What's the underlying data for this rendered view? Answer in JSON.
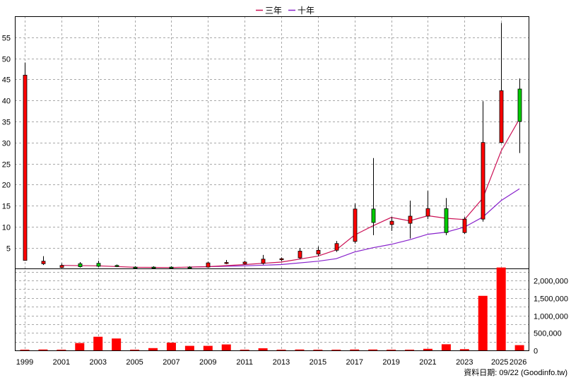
{
  "chart_data": {
    "type": "candlestick",
    "legend": {
      "position": "top-center",
      "entries": [
        {
          "name": "三年",
          "color": "#cc1155"
        },
        {
          "name": "十年",
          "color": "#8822cc"
        }
      ]
    },
    "x_tick_labels": [
      "1999",
      "2001",
      "2003",
      "2005",
      "2007",
      "2009",
      "2011",
      "2013",
      "2015",
      "2017",
      "2019",
      "2021",
      "2023",
      "2025",
      "2026"
    ],
    "price_panel": {
      "yticks": [
        5,
        10,
        15,
        20,
        25,
        30,
        35,
        40,
        45,
        50,
        55
      ],
      "grid": true,
      "candles": [
        {
          "year": 1999,
          "open": 2,
          "close": 46,
          "high": 49,
          "low": 2
        },
        {
          "year": 2000,
          "open": 1.2,
          "close": 1.8,
          "high": 3,
          "low": 0.9
        },
        {
          "year": 2001,
          "open": 0.3,
          "close": 0.8,
          "high": 1.3,
          "low": 0.2
        },
        {
          "year": 2002,
          "open": 1.2,
          "close": 0.5,
          "high": 1.6,
          "low": 0.3
        },
        {
          "year": 2003,
          "open": 1.3,
          "close": 0.6,
          "high": 1.9,
          "low": 0.4
        },
        {
          "year": 2004,
          "open": 0.8,
          "close": 0.6,
          "high": 1.0,
          "low": 0.4
        },
        {
          "year": 2005,
          "open": 0.4,
          "close": 0.3,
          "high": 0.6,
          "low": 0.1
        },
        {
          "year": 2006,
          "open": 0.4,
          "close": 0.3,
          "high": 0.6,
          "low": 0.1
        },
        {
          "year": 2007,
          "open": 0.4,
          "close": 0.3,
          "high": 0.6,
          "low": 0.2
        },
        {
          "year": 2008,
          "open": 0.4,
          "close": 0.3,
          "high": 0.6,
          "low": 0.2
        },
        {
          "year": 2009,
          "open": 0.4,
          "close": 1.4,
          "high": 1.7,
          "low": 0.3
        },
        {
          "year": 2010,
          "open": 1.3,
          "close": 1.5,
          "high": 2.1,
          "low": 1.1
        },
        {
          "year": 2011,
          "open": 1.2,
          "close": 1.6,
          "high": 1.9,
          "low": 1.0
        },
        {
          "year": 2012,
          "open": 1.3,
          "close": 2.3,
          "high": 3.3,
          "low": 1.0
        },
        {
          "year": 2013,
          "open": 2.2,
          "close": 2.4,
          "high": 2.7,
          "low": 1.8
        },
        {
          "year": 2014,
          "open": 2.6,
          "close": 4.2,
          "high": 4.9,
          "low": 2.3
        },
        {
          "year": 2015,
          "open": 3.5,
          "close": 4.4,
          "high": 5.3,
          "low": 3.0
        },
        {
          "year": 2016,
          "open": 4.4,
          "close": 6.0,
          "high": 6.6,
          "low": 4.0
        },
        {
          "year": 2017,
          "open": 6.5,
          "close": 14.2,
          "high": 15.5,
          "low": 6.0
        },
        {
          "year": 2018,
          "open": 14.2,
          "close": 11.0,
          "high": 26.3,
          "low": 8.0
        },
        {
          "year": 2019,
          "open": 10.5,
          "close": 11.3,
          "high": 12.3,
          "low": 9.0
        },
        {
          "year": 2020,
          "open": 10.8,
          "close": 12.5,
          "high": 16.2,
          "low": 7.2
        },
        {
          "year": 2021,
          "open": 12.5,
          "close": 14.3,
          "high": 18.5,
          "low": 11.8
        },
        {
          "year": 2022,
          "open": 14.3,
          "close": 8.6,
          "high": 16.8,
          "low": 8.0
        },
        {
          "year": 2023,
          "open": 8.6,
          "close": 11.8,
          "high": 12.3,
          "low": 8.3
        },
        {
          "year": 2024,
          "open": 11.8,
          "close": 30.0,
          "high": 39.8,
          "low": 11.2
        },
        {
          "year": 2025,
          "open": 30.0,
          "close": 42.3,
          "high": 58.4,
          "low": 29.8
        },
        {
          "year": 2026,
          "open": 42.7,
          "close": 35.0,
          "high": 45.2,
          "low": 27.5
        }
      ],
      "ma_three_year": [
        [
          2001,
          0.8
        ],
        [
          2003,
          0.7
        ],
        [
          2005,
          0.35
        ],
        [
          2007,
          0.3
        ],
        [
          2009,
          0.5
        ],
        [
          2011,
          1.0
        ],
        [
          2013,
          1.6
        ],
        [
          2015,
          3.0
        ],
        [
          2016,
          4.5
        ],
        [
          2017,
          8.0
        ],
        [
          2018,
          10.2
        ],
        [
          2019,
          12.2
        ],
        [
          2020,
          11.4
        ],
        [
          2021,
          12.6
        ],
        [
          2022,
          12.0
        ],
        [
          2023,
          11.7
        ],
        [
          2024,
          16.8
        ],
        [
          2025,
          28.0
        ],
        [
          2026,
          35.6
        ]
      ],
      "ma_ten_year": [
        [
          2008,
          0.4
        ],
        [
          2009,
          0.5
        ],
        [
          2011,
          0.7
        ],
        [
          2013,
          1.0
        ],
        [
          2015,
          1.8
        ],
        [
          2016,
          2.4
        ],
        [
          2017,
          4.0
        ],
        [
          2018,
          5.0
        ],
        [
          2019,
          5.8
        ],
        [
          2020,
          6.9
        ],
        [
          2021,
          8.2
        ],
        [
          2022,
          8.7
        ],
        [
          2023,
          9.9
        ],
        [
          2024,
          12.3
        ],
        [
          2025,
          16.2
        ],
        [
          2026,
          19.0
        ]
      ]
    },
    "volume_panel": {
      "yticks": [
        0,
        500000,
        1000000,
        1500000,
        2000000
      ],
      "ytick_labels": [
        "0",
        "500,000",
        "1,000,000",
        "1,500,000",
        "2,000,000"
      ],
      "grid": true,
      "color": "#ff0000",
      "bars": [
        {
          "year": 1999,
          "value": 5000
        },
        {
          "year": 2000,
          "value": 25000
        },
        {
          "year": 2001,
          "value": 5000
        },
        {
          "year": 2002,
          "value": 210000
        },
        {
          "year": 2003,
          "value": 390000
        },
        {
          "year": 2004,
          "value": 340000
        },
        {
          "year": 2005,
          "value": 20000
        },
        {
          "year": 2006,
          "value": 65000
        },
        {
          "year": 2007,
          "value": 220000
        },
        {
          "year": 2008,
          "value": 130000
        },
        {
          "year": 2009,
          "value": 130000
        },
        {
          "year": 2010,
          "value": 170000
        },
        {
          "year": 2011,
          "value": 20000
        },
        {
          "year": 2012,
          "value": 60000
        },
        {
          "year": 2013,
          "value": 5000
        },
        {
          "year": 2014,
          "value": 25000
        },
        {
          "year": 2015,
          "value": 5000
        },
        {
          "year": 2016,
          "value": 5000
        },
        {
          "year": 2017,
          "value": 25000
        },
        {
          "year": 2018,
          "value": 25000
        },
        {
          "year": 2019,
          "value": 5000
        },
        {
          "year": 2020,
          "value": 5000
        },
        {
          "year": 2021,
          "value": 45000
        },
        {
          "year": 2022,
          "value": 175000
        },
        {
          "year": 2023,
          "value": 35000
        },
        {
          "year": 2024,
          "value": 1560000
        },
        {
          "year": 2025,
          "value": 2370000
        },
        {
          "year": 2026,
          "value": 150000
        }
      ]
    },
    "footer_note": "資料日期: 09/22 (Goodinfo.tw)"
  }
}
